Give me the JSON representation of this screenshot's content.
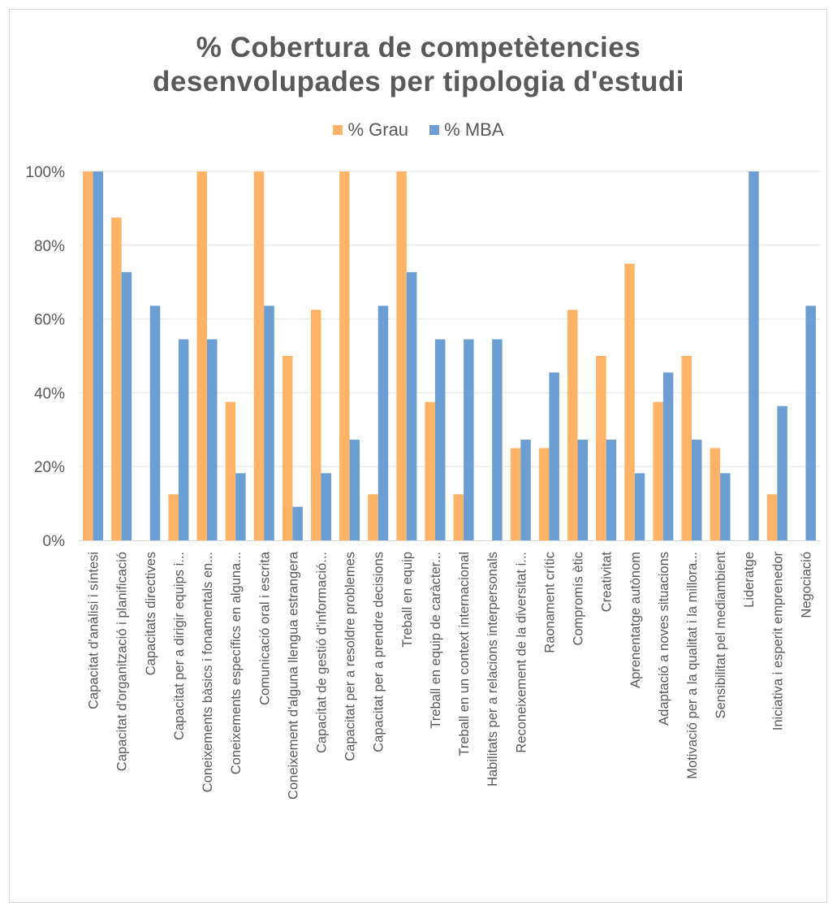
{
  "chart_data": {
    "type": "bar",
    "title_lines": [
      "% Cobertura de competètencies",
      "desenvolupades per tipologia d'estudi"
    ],
    "categories": [
      "Capacitat d'anàlisi i síntesi",
      "Capacitat d'organització i planificació",
      "Capacitats directives",
      "Capacitat per a dirigir equips i...",
      "Coneixements bàsics i fonamentals en...",
      "Coneixements específics en alguna...",
      "Comunicació oral i escrita",
      "Coneixement d'alguna llengua estrangera",
      "Capacitat de gestió d'informació...",
      "Capacitat per a resoldre problemes",
      "Capacitat per a prendre decisions",
      "Treball en equip",
      "Treball en equip de caràcter...",
      "Treball en un context internacional",
      "Habilitats per a relacions interpersonals",
      "Reconeixement de la diversitat i...",
      "Raonament crític",
      "Compromís ètic",
      "Creativitat",
      "Aprenentatge autònom",
      "Adaptació a noves situacions",
      "Motivació per a la qualitat i la millora...",
      "Sensibilitat pel mediambient",
      "Lideratge",
      "Iniciativa i esperit emprenedor",
      "Negociació"
    ],
    "series": [
      {
        "name": "% Grau",
        "color": "#ffb366",
        "values": [
          100,
          87.5,
          0,
          12.5,
          100,
          37.5,
          100,
          50,
          62.5,
          100,
          12.5,
          100,
          37.5,
          12.5,
          0,
          25,
          25,
          62.5,
          50,
          75,
          37.5,
          50,
          25,
          0,
          12.5,
          0
        ]
      },
      {
        "name": "% MBA",
        "color": "#6b9fd4",
        "values": [
          100,
          72.7,
          63.6,
          54.5,
          54.5,
          18.2,
          63.6,
          9.1,
          18.2,
          27.3,
          63.6,
          72.7,
          54.5,
          54.5,
          54.5,
          27.3,
          45.5,
          27.3,
          27.3,
          18.2,
          45.5,
          27.3,
          18.2,
          100,
          36.4,
          63.6
        ]
      }
    ],
    "y_ticks": [
      "0%",
      "20%",
      "40%",
      "60%",
      "80%",
      "100%"
    ],
    "ylim": [
      0,
      100
    ],
    "grid": true,
    "legend_position": "top"
  }
}
